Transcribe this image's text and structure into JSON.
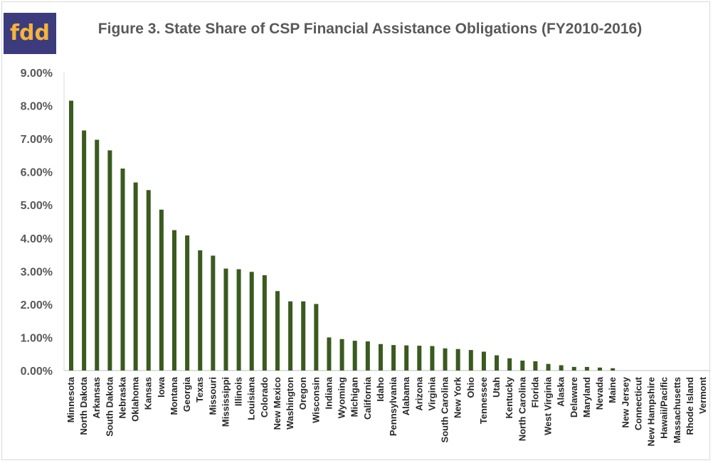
{
  "logo": {
    "text": "fdd",
    "bg_color": "#3b3b7e",
    "text_color": "#f5b43a"
  },
  "chart_data": {
    "type": "bar",
    "title": "Figure 3. State Share of CSP Financial Assistance Obligations (FY2010-2016)",
    "xlabel": "",
    "ylabel": "",
    "ylim": [
      0,
      9
    ],
    "y_unit_format": "%",
    "y_ticks": [
      "0.00%",
      "1.00%",
      "2.00%",
      "3.00%",
      "4.00%",
      "5.00%",
      "6.00%",
      "7.00%",
      "8.00%",
      "9.00%"
    ],
    "bar_color": "#3a5a1f",
    "grid": false,
    "legend": "none",
    "categories": [
      "Minnesota",
      "North Dakota",
      "Arkansas",
      "South Dakota",
      "Nebraska",
      "Oklahoma",
      "Kansas",
      "Iowa",
      "Montana",
      "Georgia",
      "Texas",
      "Missouri",
      "Mississippi",
      "Illinois",
      "Louisiana",
      "Colorado",
      "New Mexico",
      "Washington",
      "Oregon",
      "Wisconsin",
      "Indiana",
      "Wyoming",
      "Michigan",
      "California",
      "Idaho",
      "Pennsylvania",
      "Alabama",
      "Arizona",
      "Virginia",
      "South Carolina",
      "New York",
      "Ohio",
      "Tennessee",
      "Utah",
      "Kentucky",
      "North Carolina",
      "Florida",
      "West Virginia",
      "Alaska",
      "Delaware",
      "Maryland",
      "Nevada",
      "Maine",
      "New Jersey",
      "Connecticut",
      "New Hampshire",
      "Hawaii/Pacific",
      "Massachusetts",
      "Rhode Island",
      "Vermont"
    ],
    "values": [
      8.15,
      7.25,
      6.97,
      6.65,
      6.1,
      5.68,
      5.45,
      4.86,
      4.24,
      4.08,
      3.63,
      3.47,
      3.08,
      3.06,
      2.98,
      2.88,
      2.4,
      2.09,
      2.09,
      2.01,
      1.0,
      0.95,
      0.9,
      0.88,
      0.8,
      0.77,
      0.76,
      0.75,
      0.74,
      0.67,
      0.65,
      0.62,
      0.57,
      0.46,
      0.37,
      0.3,
      0.28,
      0.2,
      0.16,
      0.11,
      0.11,
      0.09,
      0.07,
      0.0,
      0.0,
      0.0,
      0.0,
      0.0,
      0.0,
      0.0
    ]
  }
}
